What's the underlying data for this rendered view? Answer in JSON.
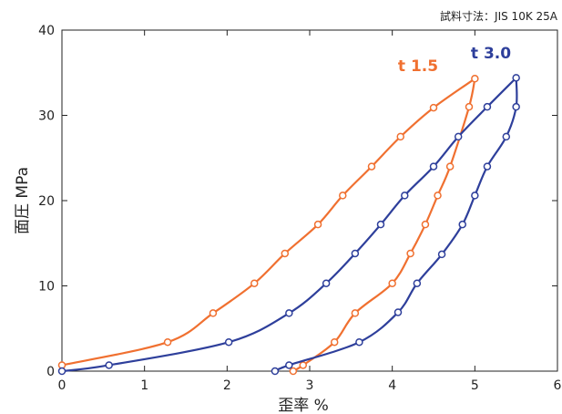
{
  "chart_data": {
    "type": "line",
    "title": "",
    "note": "試料寸法：JIS 10K 25A",
    "xlabel": "歪率 %",
    "ylabel": "面圧 MPa",
    "xlim": [
      0,
      6
    ],
    "ylim": [
      0,
      40
    ],
    "xticks": [
      0,
      1,
      2,
      3,
      4,
      5,
      6
    ],
    "yticks": [
      0,
      10,
      20,
      30,
      40
    ],
    "grid": false,
    "series": [
      {
        "name": "t 1.5",
        "color": "#f07030",
        "loading": [
          [
            0.0,
            0.7
          ],
          [
            1.28,
            3.4
          ],
          [
            1.83,
            6.8
          ],
          [
            2.33,
            10.3
          ],
          [
            2.7,
            13.8
          ],
          [
            3.1,
            17.2
          ],
          [
            3.4,
            20.6
          ],
          [
            3.75,
            24.0
          ],
          [
            4.1,
            27.5
          ],
          [
            4.5,
            30.9
          ],
          [
            5.0,
            34.3
          ]
        ],
        "unloading": [
          [
            5.0,
            34.3
          ],
          [
            4.93,
            31.0
          ],
          [
            4.7,
            24.0
          ],
          [
            4.55,
            20.6
          ],
          [
            4.4,
            17.2
          ],
          [
            4.22,
            13.8
          ],
          [
            4.0,
            10.3
          ],
          [
            3.55,
            6.8
          ],
          [
            3.3,
            3.4
          ],
          [
            2.92,
            0.7
          ],
          [
            2.8,
            0.0
          ]
        ]
      },
      {
        "name": "t 3.0",
        "color": "#2e3f9b",
        "loading": [
          [
            0.0,
            0.0
          ],
          [
            0.57,
            0.7
          ],
          [
            2.02,
            3.4
          ],
          [
            2.75,
            6.8
          ],
          [
            3.2,
            10.3
          ],
          [
            3.55,
            13.8
          ],
          [
            3.86,
            17.2
          ],
          [
            4.15,
            20.6
          ],
          [
            4.5,
            24.0
          ],
          [
            4.8,
            27.5
          ],
          [
            5.15,
            31.0
          ],
          [
            5.5,
            34.4
          ]
        ],
        "unloading": [
          [
            5.5,
            34.4
          ],
          [
            5.5,
            31.0
          ],
          [
            5.38,
            27.5
          ],
          [
            5.15,
            24.0
          ],
          [
            5.0,
            20.6
          ],
          [
            4.85,
            17.2
          ],
          [
            4.6,
            13.7
          ],
          [
            4.3,
            10.3
          ],
          [
            4.07,
            6.9
          ],
          [
            3.6,
            3.4
          ],
          [
            2.75,
            0.7
          ],
          [
            2.58,
            0.0
          ]
        ]
      }
    ]
  }
}
